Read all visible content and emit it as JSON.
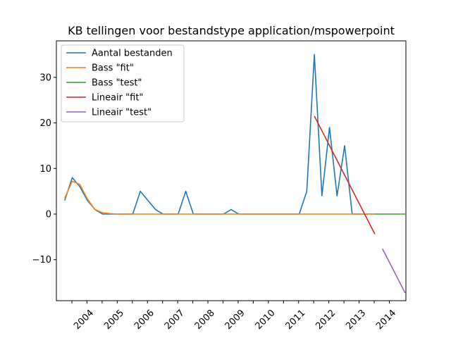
{
  "chart_data": {
    "type": "line",
    "title": "KB tellingen voor bestandstype application/mspowerpoint",
    "xlabel": "",
    "ylabel": "",
    "x_tick_labels": [
      "",
      "2004",
      "",
      "2005",
      "",
      "2006",
      "",
      "2007",
      "",
      "2008",
      "",
      "2009",
      "",
      "2010",
      "",
      "2011",
      "",
      "2012",
      "",
      "2013",
      "",
      "2014"
    ],
    "y_ticks": [
      -10,
      0,
      10,
      20,
      30
    ],
    "ylim": [
      -19,
      38
    ],
    "xlim": [
      -1.1,
      45.1
    ],
    "grid": false,
    "legend_position": "upper-left",
    "series": [
      {
        "name": "Aantal bestanden",
        "color": "#1f77b4",
        "x": [
          0,
          1,
          2,
          3,
          4,
          5,
          6,
          7,
          8,
          9,
          10,
          11,
          12,
          13,
          14,
          15,
          16,
          17,
          18,
          19,
          20,
          21,
          22,
          23,
          24,
          25,
          26,
          27,
          28,
          29,
          30,
          31,
          32,
          33,
          34,
          35,
          36,
          37,
          38,
          39,
          40,
          41
        ],
        "y": [
          3,
          8,
          6,
          3,
          1,
          0,
          0,
          0,
          0,
          0,
          5,
          3,
          1,
          0,
          0,
          0,
          5,
          0,
          0,
          0,
          0,
          0,
          1,
          0,
          0,
          0,
          0,
          0,
          0,
          0,
          0,
          0,
          5,
          35,
          4,
          19,
          4,
          15,
          0,
          0,
          0,
          0
        ]
      },
      {
        "name": "Bass \"fit\"",
        "color": "#ff7f0e",
        "x": [
          0,
          1,
          2,
          3,
          4,
          5,
          6,
          7,
          8,
          9,
          10,
          11,
          12,
          13,
          14,
          15,
          16,
          17,
          18,
          19,
          20,
          21,
          22,
          23,
          24,
          25,
          26,
          27,
          28,
          29,
          30,
          31,
          32,
          33,
          34,
          35,
          36,
          37,
          38,
          39,
          40,
          41
        ],
        "y": [
          3.5,
          7.2,
          6.5,
          3.3,
          1.0,
          0.3,
          0.1,
          0,
          0,
          0,
          0,
          0,
          0,
          0,
          0,
          0,
          0,
          0,
          0,
          0,
          0,
          0,
          0,
          0,
          0,
          0,
          0,
          0,
          0,
          0,
          0,
          0,
          0,
          0,
          0,
          0,
          0,
          0,
          0,
          0,
          0,
          0
        ]
      },
      {
        "name": "Bass \"test\"",
        "color": "#2ca02c",
        "x": [
          41,
          42,
          43,
          44,
          45
        ],
        "y": [
          0,
          0,
          0,
          0,
          0
        ]
      },
      {
        "name": "Lineair \"fit\"",
        "color": "#d62728",
        "x": [
          33,
          41
        ],
        "y": [
          21.5,
          -4.4
        ]
      },
      {
        "name": "Lineair \"test\"",
        "color": "#9467bd",
        "x": [
          42,
          45
        ],
        "y": [
          -7.6,
          -17.3
        ]
      }
    ]
  }
}
